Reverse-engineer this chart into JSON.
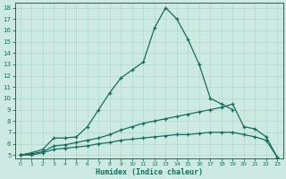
{
  "xlabel": "Humidex (Indice chaleur)",
  "bg_color": "#cceae2",
  "line_color": "#1a6b5e",
  "grid_color": "#a8d4cc",
  "xlim_min": -0.5,
  "xlim_max": 23.5,
  "ylim_min": 4.7,
  "ylim_max": 18.4,
  "xticks": [
    0,
    1,
    2,
    3,
    4,
    5,
    6,
    7,
    8,
    9,
    10,
    11,
    12,
    13,
    14,
    15,
    16,
    17,
    18,
    19,
    20,
    21,
    22,
    23
  ],
  "yticks": [
    5,
    6,
    7,
    8,
    9,
    10,
    11,
    12,
    13,
    14,
    15,
    16,
    17,
    18
  ],
  "line1_x": [
    0,
    1,
    2,
    3,
    4,
    5,
    6,
    7,
    8,
    9,
    10,
    11,
    12,
    13,
    14,
    15,
    16,
    17,
    18,
    19,
    20,
    21,
    22,
    23
  ],
  "line1_y": [
    5.0,
    5.2,
    5.5,
    6.5,
    6.5,
    6.6,
    7.5,
    9.0,
    10.5,
    11.8,
    12.5,
    13.2,
    16.2,
    18.0,
    17.0,
    15.2,
    13.0,
    10.0,
    9.5,
    9.0,
    null,
    null,
    null,
    null
  ],
  "line2_x": [
    0,
    1,
    2,
    3,
    4,
    5,
    6,
    7,
    8,
    9,
    10,
    11,
    12,
    13,
    14,
    15,
    16,
    17,
    18,
    19,
    20,
    21,
    22,
    23
  ],
  "line2_y": [
    5.0,
    5.1,
    5.3,
    5.8,
    5.9,
    6.1,
    6.3,
    6.5,
    6.8,
    7.2,
    7.5,
    7.8,
    8.0,
    8.2,
    8.4,
    8.6,
    8.8,
    9.0,
    9.2,
    9.5,
    7.5,
    7.3,
    6.6,
    4.8
  ],
  "line3_x": [
    0,
    1,
    2,
    3,
    4,
    5,
    6,
    7,
    8,
    9,
    10,
    11,
    12,
    13,
    14,
    15,
    16,
    17,
    18,
    19,
    20,
    21,
    22,
    23
  ],
  "line3_y": [
    5.0,
    5.0,
    5.2,
    5.5,
    5.6,
    5.7,
    5.8,
    6.0,
    6.1,
    6.3,
    6.4,
    6.5,
    6.6,
    6.7,
    6.8,
    6.8,
    6.9,
    7.0,
    7.0,
    7.0,
    6.8,
    6.6,
    6.3,
    4.8
  ]
}
